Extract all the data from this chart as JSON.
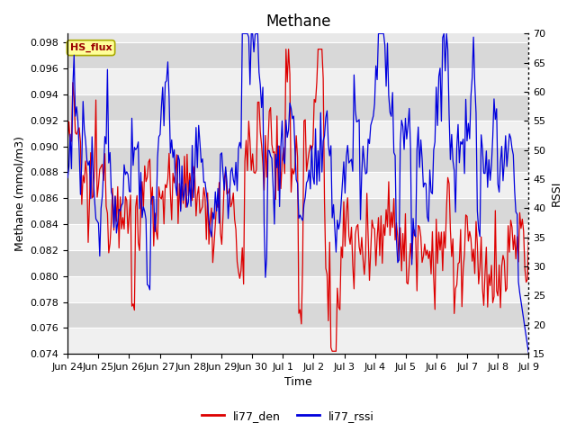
{
  "title": "Methane",
  "xlabel": "Time",
  "ylabel_left": "Methane (mmol/m3)",
  "ylabel_right": "RSSI",
  "ylim_left": [
    0.074,
    0.0987
  ],
  "ylim_right": [
    15,
    70
  ],
  "yticks_left": [
    0.074,
    0.076,
    0.078,
    0.08,
    0.082,
    0.084,
    0.086,
    0.088,
    0.09,
    0.092,
    0.094,
    0.096,
    0.098
  ],
  "yticks_right": [
    15,
    20,
    25,
    30,
    35,
    40,
    45,
    50,
    55,
    60,
    65,
    70
  ],
  "xtick_labels": [
    "Jun 24",
    "Jun 25",
    "Jun 26",
    "Jun 27",
    "Jun 28",
    "Jun 29",
    "Jun 30",
    "Jul 1",
    "Jul 2",
    "Jul 3",
    "Jul 4",
    "Jul 5",
    "Jul 6",
    "Jul 7",
    "Jul 8",
    "Jul 9"
  ],
  "color_red": "#dd0000",
  "color_blue": "#0000dd",
  "legend_label_red": "li77_den",
  "legend_label_blue": "li77_rssi",
  "tag_label": "HS_flux",
  "tag_bg": "#ffff99",
  "tag_border": "#aaaa00",
  "plot_bg": "#e8e8e8",
  "strip_light": "#f0f0f0",
  "strip_dark": "#d8d8d8",
  "title_fontsize": 12,
  "axis_label_fontsize": 9,
  "tick_fontsize": 8,
  "legend_fontsize": 9
}
